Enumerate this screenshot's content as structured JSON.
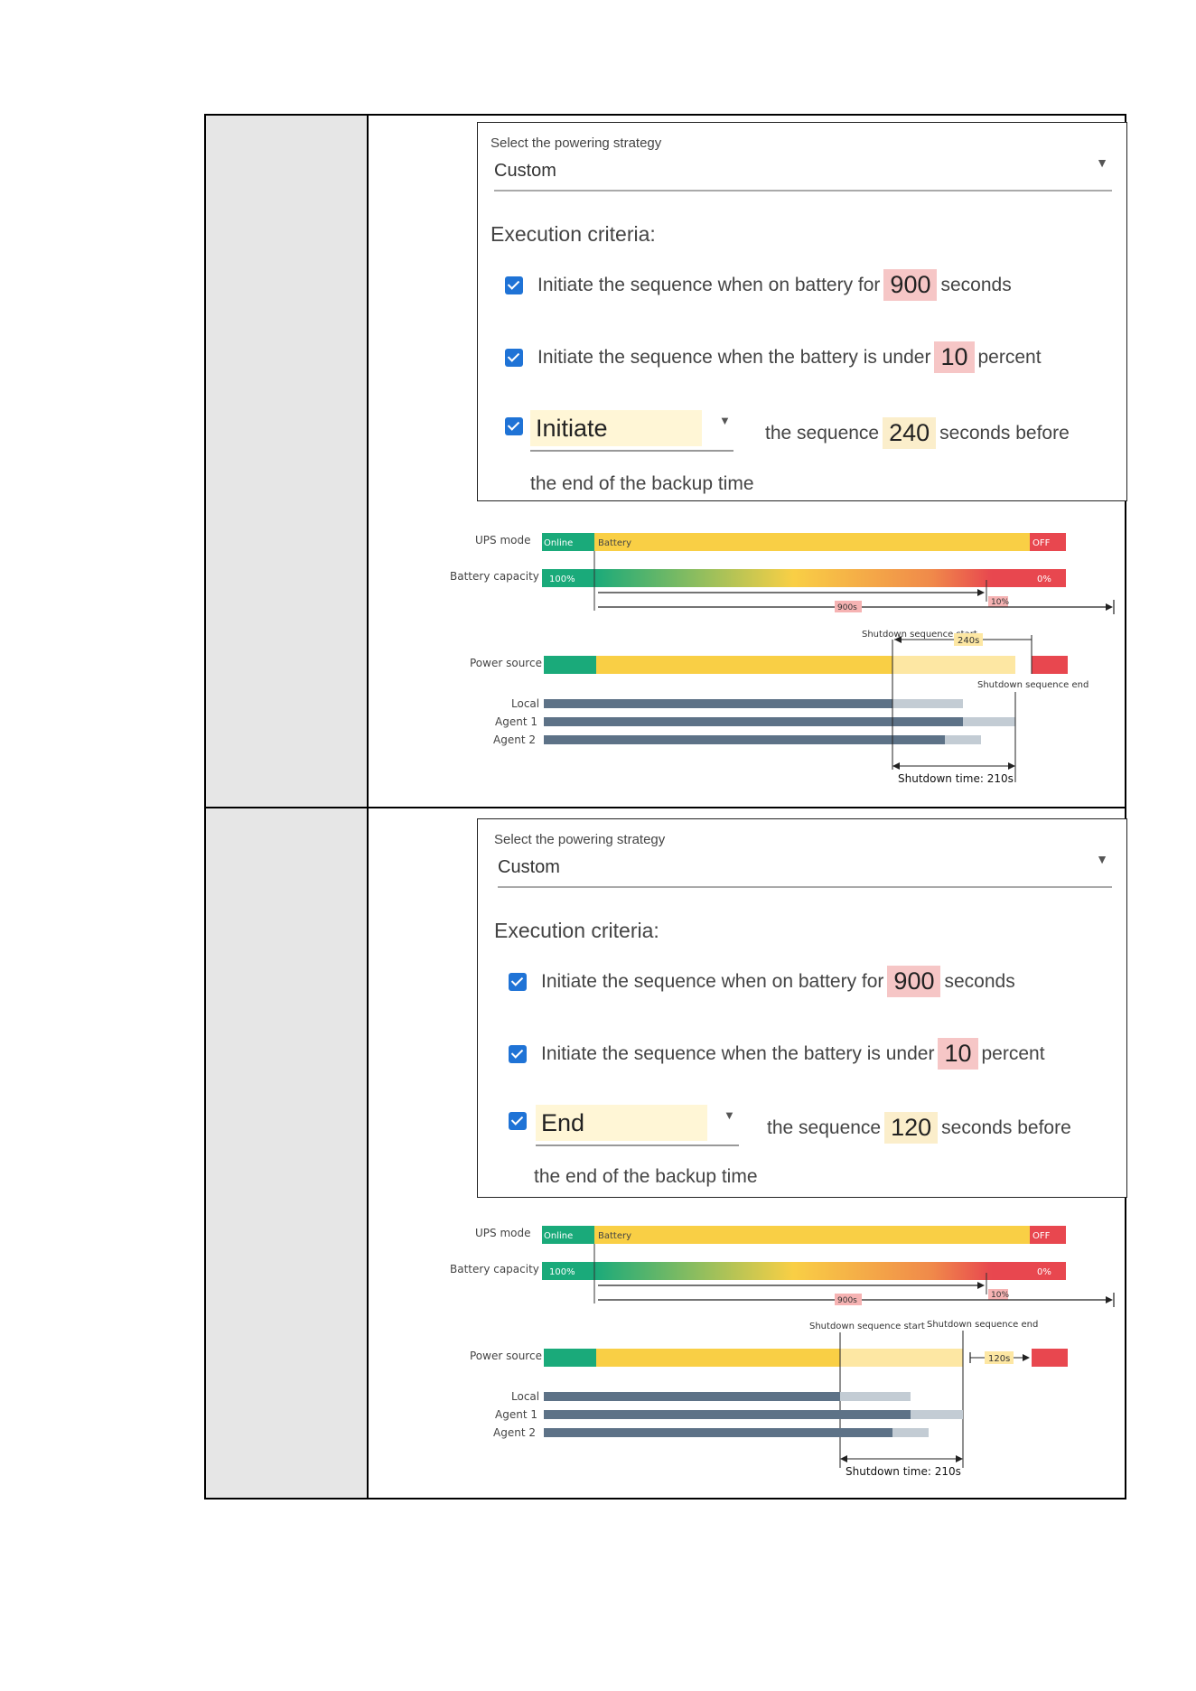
{
  "panels": [
    {
      "strategy_label": "Select the powering strategy",
      "strategy_value": "Custom",
      "exec_title": "Execution criteria:",
      "crit1_text": "Initiate  the sequence when on battery for",
      "crit1_value": "900",
      "crit1_unit": "seconds",
      "crit1_checked": true,
      "crit2_text": "Initiate the sequence when the battery is under",
      "crit2_value": "10",
      "crit2_unit": "percent",
      "crit2_checked": true,
      "crit3_checked": true,
      "crit3_mode": "Initiate",
      "crit3_mid": "the sequence",
      "crit3_value": "240",
      "crit3_unit": "seconds before",
      "crit3_tail": "the end of the backup time"
    },
    {
      "strategy_label": "Select the powering strategy",
      "strategy_value": "Custom",
      "exec_title": "Execution criteria:",
      "crit1_text": "Initiate  the sequence when on battery for",
      "crit1_value": "900",
      "crit1_unit": "seconds",
      "crit1_checked": true,
      "crit2_text": "Initiate the sequence when the battery is under",
      "crit2_value": "10",
      "crit2_unit": "percent",
      "crit2_checked": true,
      "crit3_checked": true,
      "crit3_mode": "End",
      "crit3_mid": "the sequence",
      "crit3_value": "120",
      "crit3_unit": "seconds before",
      "crit3_tail": "the end of the backup time"
    }
  ],
  "diagrams": [
    {
      "ups_mode_label": "UPS mode",
      "battery_capacity_label": "Battery capacity",
      "online_label": "Online",
      "battery_label": "Battery",
      "off_label": "OFF",
      "cap_100": "100%",
      "cap_0": "0%",
      "cap_10": "10%",
      "span_900": "900s",
      "power_source_label": "Power source",
      "seq_start_label": "Shutdown sequence start",
      "seq_end_label": "Shutdown sequence end",
      "seq_offset": "240s",
      "local_label": "Local",
      "agent1_label": "Agent 1",
      "agent2_label": "Agent 2",
      "shutdown_time_label": "Shutdown time: 210s"
    },
    {
      "ups_mode_label": "UPS mode",
      "battery_capacity_label": "Battery capacity",
      "online_label": "Online",
      "battery_label": "Battery",
      "off_label": "OFF",
      "cap_100": "100%",
      "cap_0": "0%",
      "cap_10": "10%",
      "span_900": "900s",
      "power_source_label": "Power source",
      "seq_start_label": "Shutdown sequence start",
      "seq_end_label": "Shutdown sequence end",
      "seq_offset": "120s",
      "local_label": "Local",
      "agent1_label": "Agent 1",
      "agent2_label": "Agent 2",
      "shutdown_time_label": "Shutdown time: 210s"
    }
  ],
  "colors": {
    "online": "#1aaa7a",
    "battery": "#f9cf45",
    "battery_light": "#fde7a3",
    "off": "#e8474f",
    "agent_bar": "#5d7287",
    "agent_bar_light": "#c3ccd4",
    "checkbox": "#1f73d6"
  }
}
